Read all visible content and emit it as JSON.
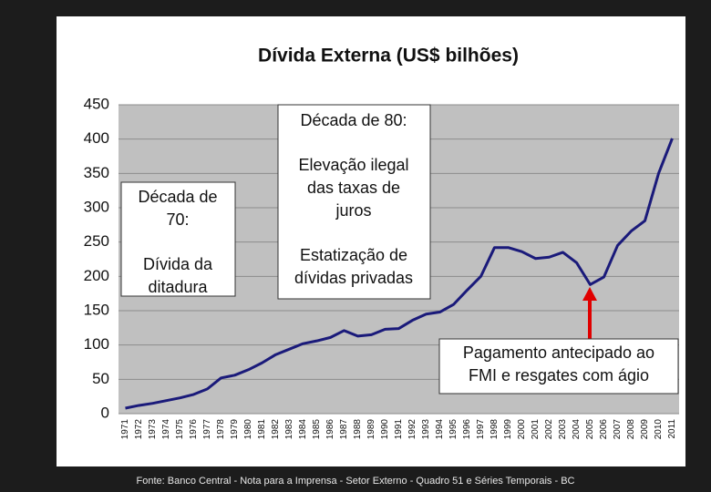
{
  "chart_data": {
    "type": "line",
    "title": "Dívida Externa (US$ bilhões)",
    "categories": [
      "1971",
      "1972",
      "1973",
      "1974",
      "1975",
      "1976",
      "1977",
      "1978",
      "1979",
      "1980",
      "1981",
      "1982",
      "1983",
      "1984",
      "1985",
      "1986",
      "1987",
      "1988",
      "1989",
      "1990",
      "1991",
      "1992",
      "1993",
      "1994",
      "1995",
      "1996",
      "1997",
      "1998",
      "1999",
      "2000",
      "2001",
      "2002",
      "2003",
      "2004",
      "2005",
      "2006",
      "2007",
      "2008",
      "2009",
      "2010",
      "2011"
    ],
    "series": [
      {
        "color": "#1a1a7a",
        "values": [
          8,
          12,
          15,
          19,
          23,
          28,
          36,
          52,
          56,
          64,
          74,
          86,
          94,
          102,
          106,
          111,
          121,
          113,
          115,
          123,
          124,
          136,
          145,
          148,
          159,
          180,
          200,
          242,
          242,
          236,
          226,
          228,
          235,
          220,
          188,
          199,
          245,
          266,
          281,
          350,
          401
        ]
      }
    ],
    "ylim": [
      0,
      450
    ],
    "yticks": [
      0,
      50,
      100,
      150,
      200,
      250,
      300,
      350,
      400,
      450
    ],
    "grid": true,
    "annotations": [
      {
        "paragraphs": [
          [
            "Década de",
            "70:"
          ],
          [
            "Dívida da",
            "ditadura"
          ]
        ]
      },
      {
        "paragraphs": [
          [
            "Década de 80:"
          ],
          [
            "Elevação ilegal",
            "das taxas de",
            "juros"
          ],
          [
            "Estatização de",
            "dívidas privadas"
          ]
        ]
      },
      {
        "paragraphs": [
          [
            "Pagamento antecipado ao",
            "FMI e resgates com ágio"
          ]
        ]
      }
    ]
  },
  "footer": "Fonte: Banco Central - Nota para a Imprensa - Setor Externo - Quadro 51 e Séries Temporais - BC"
}
